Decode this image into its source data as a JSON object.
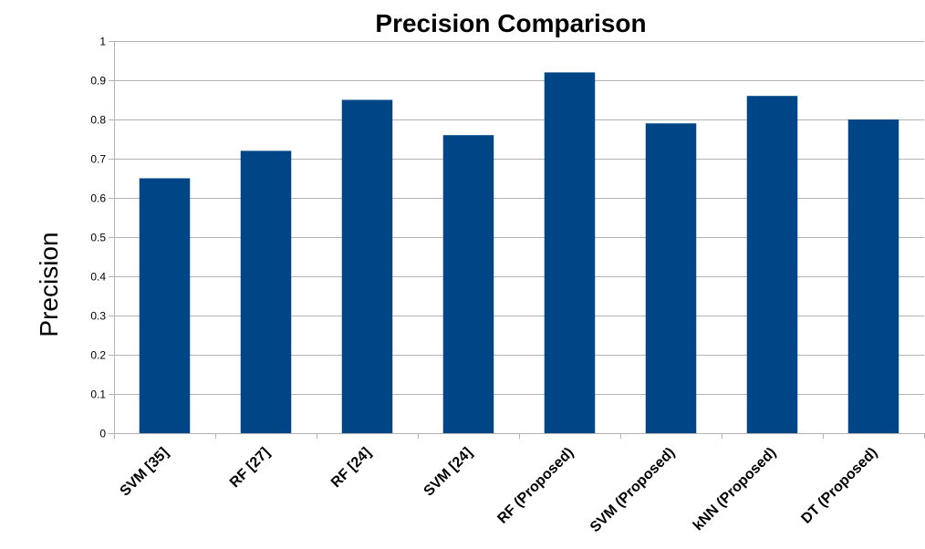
{
  "chart_data": {
    "type": "bar",
    "title": "Precision Comparison",
    "xlabel": "",
    "ylabel": "Precision",
    "categories": [
      "SVM [35]",
      "RF [27]",
      "RF [24]",
      "SVM [24]",
      "RF (Proposed)",
      "SVM (Proposed)",
      "kNN (Proposed)",
      "DT (Proposed)"
    ],
    "values": [
      0.65,
      0.72,
      0.85,
      0.76,
      0.92,
      0.79,
      0.86,
      0.8
    ],
    "ylim": [
      0,
      1
    ],
    "yticks": [
      "0",
      "0.1",
      "0.2",
      "0.3",
      "0.4",
      "0.5",
      "0.6",
      "0.7",
      "0.8",
      "0.9",
      "1"
    ],
    "grid": true,
    "legend": "none",
    "bar_color": "#004586",
    "grid_color": "#b3b3b3"
  }
}
